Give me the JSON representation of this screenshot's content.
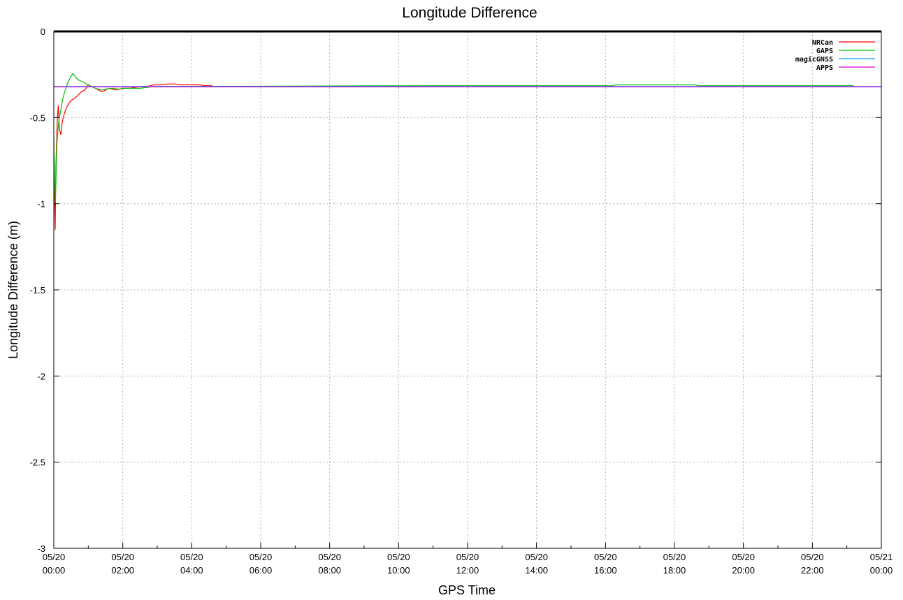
{
  "chart_data": {
    "type": "line",
    "title": "Longitude Difference",
    "xlabel": "GPS Time",
    "ylabel": "Longitude Difference (m)",
    "x_unit": "hours",
    "xlim": [
      0,
      24
    ],
    "ylim": [
      -3,
      0
    ],
    "grid": true,
    "legend_position": "top-right",
    "y_ticks": [
      "0",
      "-0.5",
      "-1",
      "-1.5",
      "-2",
      "-2.5",
      "-3"
    ],
    "y_tick_values": [
      0,
      -0.5,
      -1,
      -1.5,
      -2,
      -2.5,
      -3
    ],
    "x_ticks": [
      {
        "date": "05/20",
        "time": "00:00"
      },
      {
        "date": "05/20",
        "time": "02:00"
      },
      {
        "date": "05/20",
        "time": "04:00"
      },
      {
        "date": "05/20",
        "time": "06:00"
      },
      {
        "date": "05/20",
        "time": "08:00"
      },
      {
        "date": "05/20",
        "time": "10:00"
      },
      {
        "date": "05/20",
        "time": "12:00"
      },
      {
        "date": "05/20",
        "time": "14:00"
      },
      {
        "date": "05/20",
        "time": "16:00"
      },
      {
        "date": "05/20",
        "time": "18:00"
      },
      {
        "date": "05/20",
        "time": "20:00"
      },
      {
        "date": "05/20",
        "time": "22:00"
      },
      {
        "date": "05/21",
        "time": "00:00"
      }
    ],
    "x_tick_values": [
      0,
      2,
      4,
      6,
      8,
      10,
      12,
      14,
      16,
      18,
      20,
      22,
      24
    ],
    "series": [
      {
        "name": "NRCan",
        "color": "#ff0000",
        "x": [
          0.0,
          0.02,
          0.04,
          0.06,
          0.08,
          0.1,
          0.13,
          0.16,
          0.2,
          0.25,
          0.3,
          0.35,
          0.4,
          0.5,
          0.6,
          0.7,
          0.8,
          0.9,
          1.0,
          1.1,
          1.2,
          1.3,
          1.4,
          1.5,
          1.6,
          1.8,
          2.0,
          2.2,
          2.5,
          2.7,
          2.9,
          3.1,
          3.3,
          3.5,
          3.7,
          4.0,
          4.2,
          4.4,
          4.6
        ],
        "y": [
          -0.72,
          -0.95,
          -1.15,
          -0.78,
          -0.66,
          -0.52,
          -0.43,
          -0.56,
          -0.6,
          -0.52,
          -0.48,
          -0.45,
          -0.43,
          -0.4,
          -0.39,
          -0.37,
          -0.35,
          -0.34,
          -0.31,
          -0.32,
          -0.33,
          -0.34,
          -0.35,
          -0.34,
          -0.33,
          -0.34,
          -0.33,
          -0.33,
          -0.32,
          -0.32,
          -0.31,
          -0.31,
          -0.305,
          -0.305,
          -0.31,
          -0.31,
          -0.31,
          -0.315,
          -0.315
        ]
      },
      {
        "name": "GAPS",
        "color": "#00c000",
        "x": [
          0.0,
          0.02,
          0.04,
          0.06,
          0.08,
          0.1,
          0.13,
          0.16,
          0.2,
          0.25,
          0.3,
          0.35,
          0.4,
          0.45,
          0.5,
          0.55,
          0.6,
          0.65,
          0.7,
          0.8,
          0.9,
          1.0,
          1.1,
          1.2,
          1.3,
          1.4,
          1.5,
          1.7,
          1.9,
          2.1,
          2.3,
          2.5,
          2.7,
          2.9,
          11.0,
          16.2,
          16.3,
          18.6,
          18.7,
          21.8,
          22.2,
          23.2
        ],
        "y": [
          -0.62,
          -0.85,
          -1.0,
          -0.88,
          -0.72,
          -0.62,
          -0.55,
          -0.5,
          -0.46,
          -0.4,
          -0.36,
          -0.33,
          -0.3,
          -0.28,
          -0.26,
          -0.245,
          -0.255,
          -0.27,
          -0.28,
          -0.29,
          -0.3,
          -0.31,
          -0.32,
          -0.33,
          -0.335,
          -0.34,
          -0.335,
          -0.33,
          -0.335,
          -0.33,
          -0.33,
          -0.33,
          -0.325,
          -0.32,
          -0.315,
          -0.315,
          -0.31,
          -0.31,
          -0.315,
          -0.315,
          -0.315,
          -0.315
        ]
      },
      {
        "name": "magicGNSS",
        "color": "#00a0ff",
        "x": [
          0.0,
          24.0
        ],
        "y": [
          -0.32,
          -0.32
        ]
      },
      {
        "name": "APPS",
        "color": "#d000d0",
        "x": [
          0.0,
          24.0
        ],
        "y": [
          -0.322,
          -0.322
        ]
      }
    ]
  }
}
